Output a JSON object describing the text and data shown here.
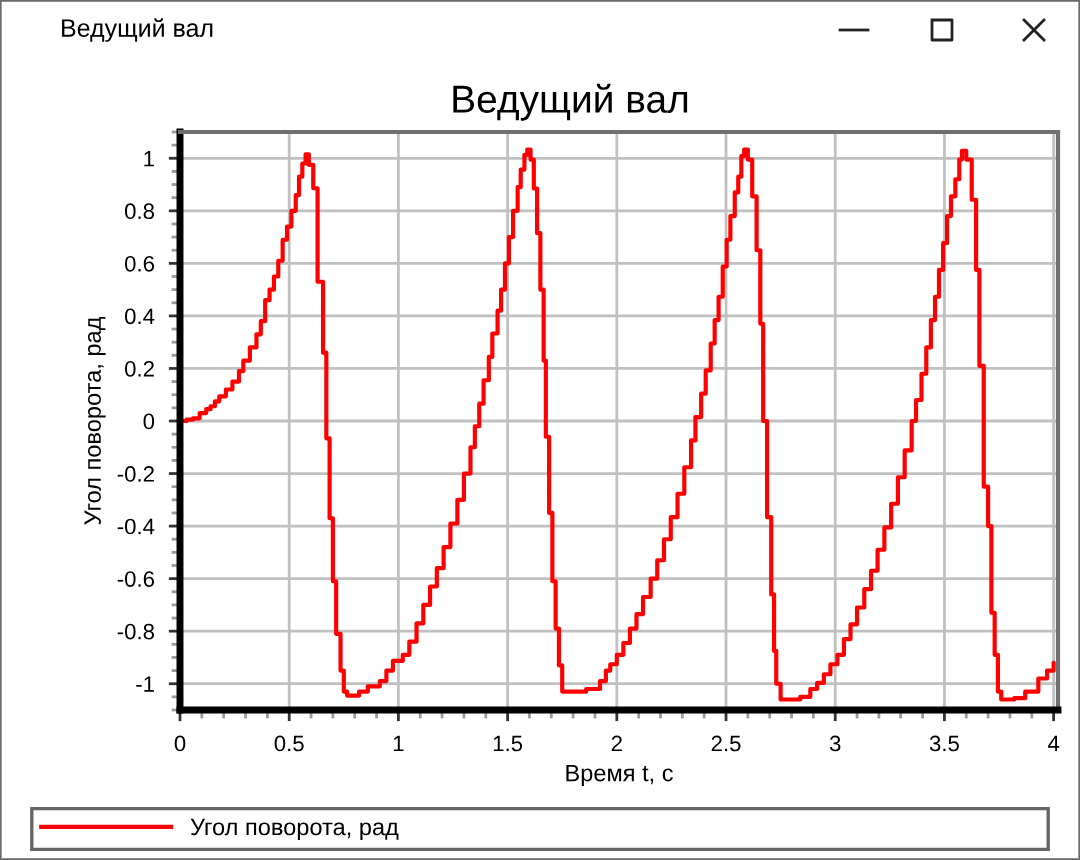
{
  "chart_data": {
    "type": "step",
    "title": "Ведущий вал",
    "xlabel": "Время t, с",
    "ylabel": "Угол поворота, рад",
    "annotations": [
      "Ведущий вал"
    ],
    "x": [
      0,
      0.03,
      0.06,
      0.09,
      0.12,
      0.14,
      0.16,
      0.18,
      0.21,
      0.24,
      0.27,
      0.29,
      0.32,
      0.35,
      0.37,
      0.39,
      0.41,
      0.43,
      0.45,
      0.47,
      0.49,
      0.51,
      0.53,
      0.545,
      0.56,
      0.575,
      0.59,
      0.61,
      0.63,
      0.655,
      0.67,
      0.685,
      0.7,
      0.715,
      0.735,
      0.75,
      0.765,
      0.82,
      0.86,
      0.915,
      0.945,
      0.975,
      1.02,
      1.05,
      1.083,
      1.114,
      1.145,
      1.176,
      1.207,
      1.238,
      1.27,
      1.3,
      1.33,
      1.35,
      1.37,
      1.39,
      1.414,
      1.43,
      1.454,
      1.47,
      1.488,
      1.506,
      1.525,
      1.546,
      1.56,
      1.577,
      1.59,
      1.605,
      1.62,
      1.635,
      1.65,
      1.665,
      1.675,
      1.69,
      1.705,
      1.72,
      1.735,
      1.75,
      1.86,
      1.923,
      1.95,
      1.97,
      2.0,
      2.03,
      2.06,
      2.09,
      2.12,
      2.155,
      2.185,
      2.216,
      2.247,
      2.278,
      2.309,
      2.34,
      2.36,
      2.386,
      2.407,
      2.43,
      2.448,
      2.466,
      2.485,
      2.503,
      2.52,
      2.54,
      2.556,
      2.57,
      2.583,
      2.6,
      2.62,
      2.64,
      2.657,
      2.67,
      2.688,
      2.707,
      2.72,
      2.73,
      2.75,
      2.84,
      2.886,
      2.917,
      2.948,
      2.978,
      3.01,
      3.04,
      3.07,
      3.1,
      3.133,
      3.164,
      3.194,
      3.225,
      3.256,
      3.287,
      3.318,
      3.35,
      3.37,
      3.395,
      3.417,
      3.438,
      3.457,
      3.475,
      3.494,
      3.512,
      3.53,
      3.55,
      3.568,
      3.58,
      3.6,
      3.625,
      3.645,
      3.66,
      3.68,
      3.7,
      3.715,
      3.73,
      3.745,
      3.76,
      3.82,
      3.87,
      3.93,
      3.97,
      4.0
    ],
    "series": [
      {
        "name": "Угол поворота, рад",
        "color": "#ff0000",
        "values": [
          0,
          0.005,
          0.01,
          0.03,
          0.045,
          0.056,
          0.075,
          0.094,
          0.12,
          0.15,
          0.19,
          0.23,
          0.28,
          0.33,
          0.38,
          0.46,
          0.5,
          0.55,
          0.61,
          0.69,
          0.74,
          0.8,
          0.86,
          0.93,
          0.98,
          1.015,
          0.975,
          0.886,
          0.53,
          0.26,
          -0.066,
          -0.37,
          -0.61,
          -0.81,
          -0.95,
          -1.03,
          -1.045,
          -1.03,
          -1.01,
          -0.99,
          -0.95,
          -0.913,
          -0.89,
          -0.84,
          -0.77,
          -0.7,
          -0.63,
          -0.56,
          -0.48,
          -0.39,
          -0.3,
          -0.2,
          -0.1,
          -0.02,
          0.066,
          0.155,
          0.244,
          0.333,
          0.42,
          0.5,
          0.6,
          0.7,
          0.8,
          0.89,
          0.957,
          1.013,
          1.033,
          0.995,
          0.885,
          0.715,
          0.5,
          0.23,
          -0.06,
          -0.35,
          -0.61,
          -0.79,
          -0.93,
          -1.03,
          -1.02,
          -0.99,
          -0.95,
          -0.926,
          -0.89,
          -0.845,
          -0.79,
          -0.735,
          -0.67,
          -0.6,
          -0.53,
          -0.45,
          -0.366,
          -0.277,
          -0.176,
          -0.074,
          0.015,
          0.104,
          0.193,
          0.295,
          0.384,
          0.473,
          0.588,
          0.69,
          0.78,
          0.87,
          0.93,
          1.008,
          1.033,
          0.995,
          0.855,
          0.65,
          0.37,
          0.0,
          -0.366,
          -0.66,
          -0.875,
          -1.0,
          -1.06,
          -1.05,
          -1.02,
          -0.997,
          -0.964,
          -0.926,
          -0.89,
          -0.83,
          -0.774,
          -0.71,
          -0.64,
          -0.57,
          -0.49,
          -0.405,
          -0.315,
          -0.214,
          -0.112,
          0.0,
          0.08,
          0.18,
          0.28,
          0.384,
          0.473,
          0.575,
          0.677,
          0.78,
          0.855,
          0.92,
          0.995,
          1.028,
          0.995,
          0.842,
          0.575,
          0.21,
          -0.25,
          -0.4,
          -0.73,
          -0.89,
          -1.03,
          -1.06,
          -1.055,
          -1.03,
          -0.98,
          -0.95,
          -0.92
        ]
      }
    ],
    "xlim": [
      0,
      4.02
    ],
    "xticks": [
      0,
      0.5,
      1,
      1.5,
      2,
      2.5,
      3,
      3.5,
      4
    ],
    "ylim": [
      -1.1,
      1.1
    ],
    "yticks": [
      -1,
      -0.8,
      -0.6,
      -0.4,
      -0.2,
      0,
      0.2,
      0.4,
      0.6,
      0.8,
      1
    ],
    "grid": true,
    "legend": "bottom"
  }
}
